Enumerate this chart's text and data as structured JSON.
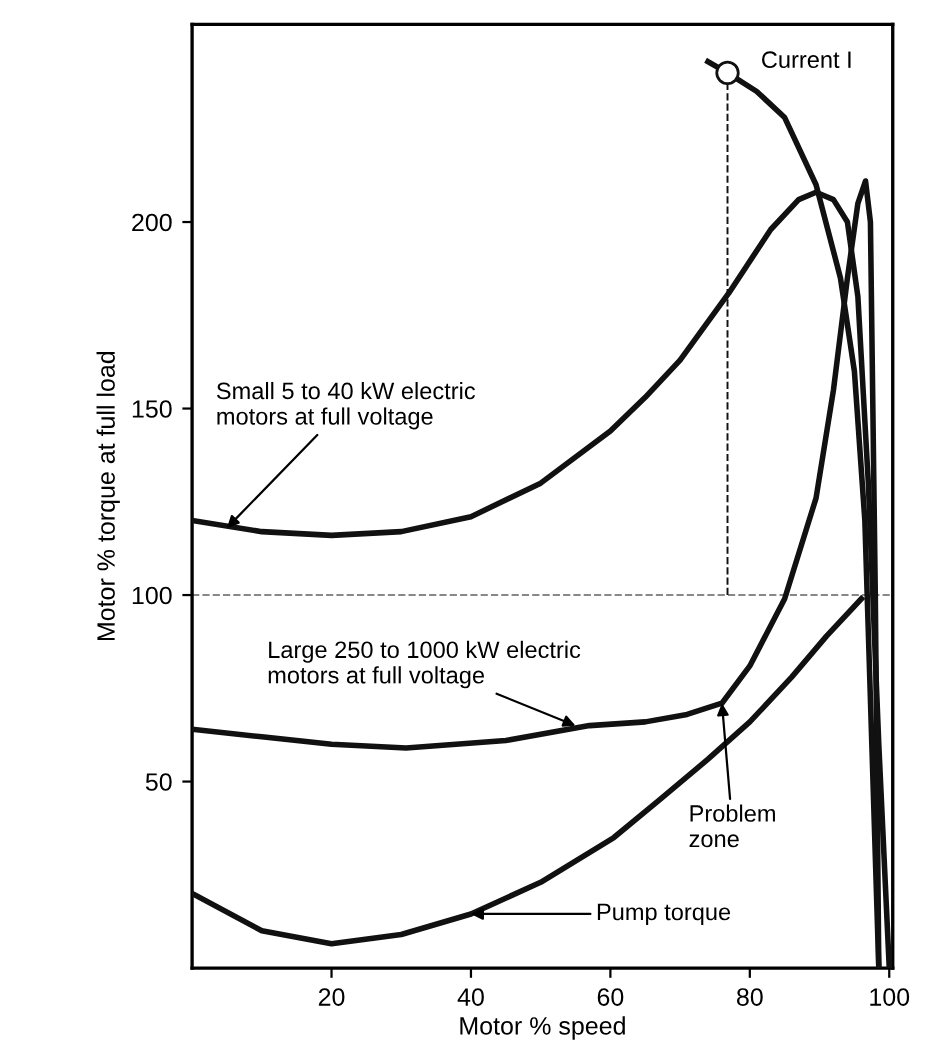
{
  "chart_data": {
    "type": "line",
    "xlabel": "Motor % speed",
    "ylabel": "Motor % torque at full load",
    "xlim": [
      0,
      100.5
    ],
    "ylim": [
      0,
      253
    ],
    "xticks": [
      20,
      40,
      60,
      80,
      100
    ],
    "yticks": [
      50,
      100,
      150,
      200
    ],
    "grid": false,
    "legend": false,
    "marker": "none",
    "line_style": "solid",
    "series": [
      {
        "color": "#111111",
        "x": [
          0,
          10,
          20,
          30,
          40,
          50,
          60,
          65,
          70,
          77,
          83,
          87,
          89.5,
          92,
          94,
          95.5,
          97,
          98.5,
          100
        ],
        "values": [
          120,
          117,
          116,
          117,
          121,
          130,
          144,
          153,
          163,
          181,
          198,
          206,
          208,
          206,
          200,
          180,
          130,
          60,
          0
        ]
      },
      {
        "color": "#111111",
        "x": [
          0,
          10,
          20,
          30.7,
          45,
          57,
          65,
          71,
          76,
          80,
          85,
          89.5,
          92,
          94,
          95.5,
          96.6,
          97.3,
          98,
          98.5
        ],
        "values": [
          64,
          62,
          60,
          59,
          61,
          65,
          66,
          68,
          71,
          81,
          99,
          126,
          155,
          185,
          205,
          211,
          200,
          100,
          0
        ]
      },
      {
        "color": "#111111",
        "x": [
          0,
          10,
          20,
          30,
          40,
          50,
          60.5,
          67,
          74,
          80,
          86,
          91,
          96
        ],
        "values": [
          20,
          10,
          6.5,
          9,
          14.5,
          23,
          35,
          45,
          56,
          66,
          78,
          89,
          99
        ]
      },
      {
        "color": "#111111",
        "x": [
          74,
          76.8,
          81,
          85,
          89.5,
          93,
          95,
          96.5,
          97.5,
          98.5
        ],
        "values": [
          243,
          240,
          235,
          228,
          210,
          185,
          160,
          120,
          60,
          0
        ]
      },
      {
        "color": "#111111",
        "type": "line",
        "line_style": "dashed",
        "x": [
          76.8,
          76.8
        ],
        "values": [
          100,
          240
        ]
      },
      {
        "color": "#111111",
        "type": "scatter",
        "marker": "circle",
        "x": [
          76.8
        ],
        "values": [
          240
        ]
      }
    ],
    "ref_lines": [
      {
        "axis": "y",
        "value": 100,
        "color": "#888888",
        "line_style": "dashed"
      }
    ],
    "annotations": [
      {
        "text": "Current I",
        "x": 76.8,
        "y": 240
      },
      {
        "text": "Small 5 to 40 kW electric\nmotors at full voltage",
        "x": 5,
        "y": 118
      },
      {
        "text": "Large 250 to 1000 kW electric\nmotors at full voltage",
        "x": 55,
        "y": 65
      },
      {
        "text": "Problem\nzone",
        "x": 76,
        "y": 71
      },
      {
        "text": "Pump torque",
        "x": 40,
        "y": 14.5
      }
    ]
  }
}
